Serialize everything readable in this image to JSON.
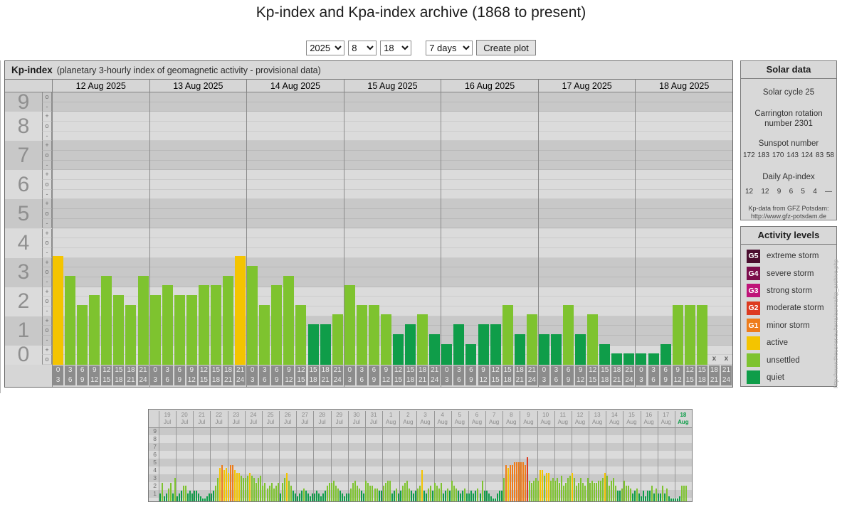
{
  "title": "Kp-index and Kpa-index archive (1868 to present)",
  "controls": {
    "year": "2025",
    "month": "8",
    "day": "18",
    "range": "7 days",
    "button_label": "Create plot"
  },
  "main_panel": {
    "title": "Kp-index",
    "subtitle": "(planetary 3-hourly index of geomagnetic activity - provisional data)"
  },
  "solar_data": {
    "title": "Solar data",
    "cycle": "Solar cycle 25",
    "carrington_line1": "Carrington rotation",
    "carrington_line2": "number 2301",
    "sunspot_title": "Sunspot number",
    "sunspot_values": [
      "172",
      "183",
      "170",
      "143",
      "124",
      "83",
      "58"
    ],
    "ap_title": "Daily Ap-index",
    "ap_values": [
      "12",
      "12",
      "9",
      "6",
      "5",
      "4",
      "—"
    ],
    "source_line1": "Kp-data from GFZ Potsdam:",
    "source_line2": "http://www.gfz-potsdam.de"
  },
  "activity_levels": {
    "title": "Activity levels",
    "items": [
      {
        "code": "G5",
        "label": "extreme storm",
        "color_key": "g5"
      },
      {
        "code": "G4",
        "label": "severe storm",
        "color_key": "g4"
      },
      {
        "code": "G3",
        "label": "strong storm",
        "color_key": "g3"
      },
      {
        "code": "G2",
        "label": "moderate storm",
        "color_key": "g2"
      },
      {
        "code": "G1",
        "label": "minor storm",
        "color_key": "g1"
      },
      {
        "code": "",
        "label": "active",
        "color_key": "active"
      },
      {
        "code": "",
        "label": "unsettled",
        "color_key": "unsettled"
      },
      {
        "code": "",
        "label": "quiet",
        "color_key": "quiet"
      }
    ]
  },
  "watermark": "http://www.theusner.eu/terra/aurora/kp_archive.php",
  "colors": {
    "quiet": "#0f9d49",
    "unsettled": "#7ec32f",
    "active": "#f4c400",
    "g1": "#ee7c1b",
    "g2": "#dd3a20",
    "g3": "#bf1378",
    "g4": "#7c0d4c",
    "g5": "#4b0e2f",
    "band_dark": "#c8c8c8",
    "band_light": "#dbdbdb",
    "panel_bg": "#d6d6d6",
    "label_box": "#8c8c8c"
  },
  "chart_data": [
    {
      "type": "bar",
      "name": "kp-index-main",
      "title": "Kp-index",
      "subtitle": "(planetary 3-hourly index of geomagnetic activity - provisional data)",
      "ylabel": "Kp",
      "y_axis": {
        "min": 0,
        "max": 9,
        "ticks": [
          9,
          8,
          7,
          6,
          5,
          4,
          3,
          2,
          1,
          0
        ],
        "sub_rows": {
          "top": [
            "o",
            "-"
          ],
          "middle": [
            "+",
            "o",
            "-"
          ],
          "bottom": [
            "+",
            "o"
          ]
        }
      },
      "x_slot_hours": [
        [
          0,
          3
        ],
        [
          3,
          6
        ],
        [
          6,
          9
        ],
        [
          9,
          12
        ],
        [
          12,
          15
        ],
        [
          15,
          18
        ],
        [
          18,
          21
        ],
        [
          21,
          24
        ]
      ],
      "missing_marker": "x",
      "level_thresholds": {
        "unsettled": 1.5,
        "active": 3.5,
        "g1": 4.5,
        "g2": 5.5
      },
      "days": [
        {
          "date": "12 Aug 2025",
          "values": [
            3.67,
            3,
            2,
            2.33,
            3,
            2.33,
            2,
            3
          ]
        },
        {
          "date": "13 Aug 2025",
          "values": [
            2.33,
            2.67,
            2.33,
            2.33,
            2.67,
            2.67,
            3,
            3.67
          ]
        },
        {
          "date": "14 Aug 2025",
          "values": [
            3.33,
            2,
            2.67,
            3,
            2,
            1.33,
            1.33,
            1.67
          ]
        },
        {
          "date": "15 Aug 2025",
          "values": [
            2.67,
            2,
            2,
            1.67,
            1,
            1.33,
            1.67,
            1
          ]
        },
        {
          "date": "16 Aug 2025",
          "values": [
            0.67,
            1.33,
            0.67,
            1.33,
            1.33,
            2,
            1,
            1.67
          ]
        },
        {
          "date": "17 Aug 2025",
          "values": [
            1,
            1,
            2,
            1,
            1.67,
            0.67,
            0.33,
            0.33
          ]
        },
        {
          "date": "18 Aug 2025",
          "values": [
            0.33,
            0.33,
            0.67,
            2,
            2,
            2,
            null,
            null
          ]
        }
      ]
    },
    {
      "type": "bar",
      "name": "kp-index-overview",
      "y_axis": {
        "min": 0,
        "max": 9,
        "ticks": [
          9,
          8,
          7,
          6,
          5,
          4,
          3,
          2,
          1
        ]
      },
      "current_day_index": 30,
      "days": [
        {
          "d": "19",
          "m": "Jul",
          "values": [
            1,
            2.33,
            0.67,
            1,
            1.67,
            2.33,
            1,
            3
          ]
        },
        {
          "d": "20",
          "m": "Jul",
          "values": [
            0.67,
            1,
            1.33,
            2,
            2,
            1,
            1.33,
            1
          ]
        },
        {
          "d": "21",
          "m": "Jul",
          "values": [
            1.33,
            1.33,
            1,
            0.67,
            0.33,
            0.33,
            0.67,
            1
          ]
        },
        {
          "d": "22",
          "m": "Jul",
          "values": [
            1,
            1.33,
            2,
            3,
            4.33,
            4.67,
            4,
            4.33
          ]
        },
        {
          "d": "23",
          "m": "Jul",
          "values": [
            3.67,
            4.67,
            4.67,
            4,
            3.67,
            3.67,
            3.33,
            3
          ]
        },
        {
          "d": "24",
          "m": "Jul",
          "values": [
            3,
            3.33,
            3.67,
            3.33,
            3,
            2.33,
            3,
            3.33
          ]
        },
        {
          "d": "25",
          "m": "Jul",
          "values": [
            2,
            2.33,
            1.67,
            2,
            2.33,
            1.67,
            2,
            2.33
          ]
        },
        {
          "d": "26",
          "m": "Jul",
          "values": [
            1,
            2.33,
            3,
            3.67,
            2.67,
            2,
            1.33,
            1
          ]
        },
        {
          "d": "27",
          "m": "Jul",
          "values": [
            0.67,
            1,
            1.33,
            1.67,
            1.33,
            1,
            0.67,
            1
          ]
        },
        {
          "d": "28",
          "m": "Jul",
          "values": [
            1,
            1.33,
            1,
            0.67,
            1,
            1.33,
            2,
            2.33
          ]
        },
        {
          "d": "29",
          "m": "Jul",
          "values": [
            2.33,
            2.67,
            2,
            1.67,
            1.33,
            1,
            0.67,
            1
          ]
        },
        {
          "d": "30",
          "m": "Jul",
          "values": [
            1,
            1.67,
            2.33,
            2.67,
            2,
            1.67,
            1.33,
            1
          ]
        },
        {
          "d": "31",
          "m": "Jul",
          "values": [
            2.67,
            2.33,
            2,
            2,
            1.67,
            1.67,
            1.33,
            1.33
          ]
        },
        {
          "d": "1",
          "m": "Aug",
          "values": [
            2,
            2.33,
            2.67,
            2.67,
            1,
            1.33,
            1.67,
            1
          ]
        },
        {
          "d": "2",
          "m": "Aug",
          "values": [
            1.33,
            2,
            2.33,
            2.67,
            1.67,
            1.33,
            1,
            1.33
          ]
        },
        {
          "d": "3",
          "m": "Aug",
          "values": [
            1.67,
            2,
            4,
            1.33,
            1,
            1.67,
            2,
            1.33
          ]
        },
        {
          "d": "4",
          "m": "Aug",
          "values": [
            2.33,
            2,
            1.67,
            2.33,
            1,
            1.33,
            1.67,
            1.33
          ]
        },
        {
          "d": "5",
          "m": "Aug",
          "values": [
            2.67,
            2,
            1.67,
            1.33,
            1,
            1.33,
            1.67,
            1
          ]
        },
        {
          "d": "6",
          "m": "Aug",
          "values": [
            1,
            1.33,
            1,
            1.33,
            1.67,
            1,
            2.67,
            1.33
          ]
        },
        {
          "d": "7",
          "m": "Aug",
          "values": [
            1.33,
            1,
            0.67,
            0.33,
            0.33,
            1,
            1.33,
            1.33
          ]
        },
        {
          "d": "8",
          "m": "Aug",
          "values": [
            3,
            4.67,
            4.33,
            4.67,
            4.67,
            5,
            5,
            5
          ]
        },
        {
          "d": "9",
          "m": "Aug",
          "values": [
            5,
            5,
            4.67,
            5.67,
            2.67,
            2.33,
            2.67,
            3
          ]
        },
        {
          "d": "10",
          "m": "Aug",
          "values": [
            2.67,
            4,
            4,
            3.33,
            3.67,
            3.67,
            2.67,
            3
          ]
        },
        {
          "d": "11",
          "m": "Aug",
          "values": [
            2.67,
            3,
            2.33,
            3.33,
            2,
            2.33,
            3,
            3.33
          ]
        },
        {
          "d": "12",
          "m": "Aug",
          "values": [
            3.67,
            3,
            2,
            2.33,
            3,
            2.33,
            2,
            3
          ]
        },
        {
          "d": "13",
          "m": "Aug",
          "values": [
            2.33,
            2.67,
            2.33,
            2.33,
            2.67,
            2.67,
            3,
            3.67
          ]
        },
        {
          "d": "14",
          "m": "Aug",
          "values": [
            3.33,
            2,
            2.67,
            3,
            2,
            1.33,
            1.33,
            1.67
          ]
        },
        {
          "d": "15",
          "m": "Aug",
          "values": [
            2.67,
            2,
            2,
            1.67,
            1,
            1.33,
            1.67,
            1
          ]
        },
        {
          "d": "16",
          "m": "Aug",
          "values": [
            0.67,
            1.33,
            0.67,
            1.33,
            1.33,
            2,
            1,
            1.67
          ]
        },
        {
          "d": "17",
          "m": "Aug",
          "values": [
            1,
            1,
            2,
            1,
            1.67,
            0.67,
            0.33,
            0.33
          ]
        },
        {
          "d": "18",
          "m": "Aug",
          "values": [
            0.33,
            0.33,
            0.67,
            2,
            2,
            2,
            null,
            null
          ]
        }
      ]
    }
  ]
}
